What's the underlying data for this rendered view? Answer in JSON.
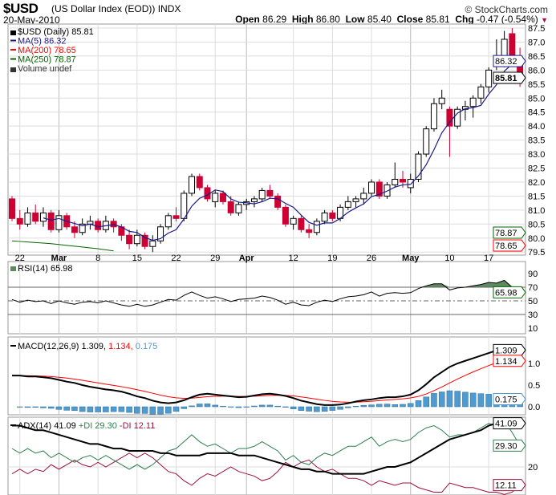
{
  "header": {
    "symbol": "$USD",
    "description": "(US Dollar Index (EOD))",
    "exchange": "INDX",
    "date": "20-May-2010",
    "copyright": "© StockCharts.com",
    "open_label": "Open",
    "open": "86.29",
    "high_label": "High",
    "high": "86.80",
    "low_label": "Low",
    "low": "85.40",
    "close_label": "Close",
    "close": "85.81",
    "chg_label": "Chg",
    "chg": "-0.47 (-0.54%)"
  },
  "legend": {
    "main": "$USD (Daily) 85.81",
    "ma5": "MA(5) 86.32",
    "ma200": "MA(200) 78.65",
    "ma250": "MA(250) 78.87",
    "volume": "Volume undef",
    "rsi": "RSI(14) 65.98",
    "macd_name": "MACD(12,26,9)",
    "macd_val": "1.309,",
    "macd_sig": "1.134,",
    "macd_hist": "0.175",
    "adx_name": "ADX(14) 41.09",
    "pdi": "+DI 29.30",
    "mdi": "-DI 12.11"
  },
  "colors": {
    "up": "#ffffff",
    "down": "#cc0033",
    "ma5": "#1a1a8c",
    "ma200": "#ff0000",
    "ma250": "#006600",
    "rsi_fill": "#5f8a5f",
    "hist": "#4f9bd0",
    "pdi": "#2e7d4f",
    "mdi": "#a0103c"
  },
  "chart_data": {
    "type": "candlestick",
    "title": "$USD (US Dollar Index (EOD)) INDX",
    "x_labels": [
      {
        "i": 1,
        "t": "22"
      },
      {
        "i": 6,
        "t": "Mar"
      },
      {
        "i": 11,
        "t": "8"
      },
      {
        "i": 16,
        "t": "15"
      },
      {
        "i": 21,
        "t": "22"
      },
      {
        "i": 26,
        "t": "29"
      },
      {
        "i": 30,
        "t": "Apr"
      },
      {
        "i": 36,
        "t": "12"
      },
      {
        "i": 41,
        "t": "19"
      },
      {
        "i": 46,
        "t": "26"
      },
      {
        "i": 51,
        "t": "May"
      },
      {
        "i": 56,
        "t": "10"
      },
      {
        "i": 61,
        "t": "17"
      }
    ],
    "price_ticks": [
      "87.5",
      "87.0",
      "86.5",
      "86.0",
      "85.5",
      "85.0",
      "84.5",
      "84.0",
      "83.5",
      "83.0",
      "82.5",
      "82.0",
      "81.5",
      "81.0",
      "80.5",
      "80.0",
      "79.5"
    ],
    "ylim": [
      79.4,
      87.6
    ],
    "ohlc": [
      [
        81.4,
        81.5,
        80.6,
        80.7
      ],
      [
        80.7,
        81.0,
        80.3,
        80.5
      ],
      [
        80.5,
        81.1,
        80.4,
        80.9
      ],
      [
        80.9,
        81.2,
        80.5,
        80.6
      ],
      [
        80.6,
        81.1,
        80.4,
        80.9
      ],
      [
        80.9,
        81.0,
        80.2,
        80.3
      ],
      [
        80.3,
        81.0,
        80.2,
        80.8
      ],
      [
        80.8,
        80.9,
        80.3,
        80.4
      ],
      [
        80.4,
        80.6,
        80.0,
        80.2
      ],
      [
        80.2,
        80.7,
        80.1,
        80.5
      ],
      [
        80.5,
        80.8,
        80.3,
        80.6
      ],
      [
        80.6,
        80.7,
        80.2,
        80.3
      ],
      [
        80.3,
        80.8,
        80.2,
        80.6
      ],
      [
        80.6,
        80.7,
        80.2,
        80.4
      ],
      [
        80.4,
        80.5,
        79.9,
        80.1
      ],
      [
        80.1,
        80.3,
        79.6,
        79.8
      ],
      [
        79.8,
        80.3,
        79.7,
        80.1
      ],
      [
        80.1,
        80.2,
        79.6,
        79.7
      ],
      [
        79.7,
        80.1,
        79.5,
        79.9
      ],
      [
        79.9,
        80.5,
        79.8,
        80.4
      ],
      [
        80.4,
        80.9,
        80.3,
        80.8
      ],
      [
        80.8,
        81.1,
        80.6,
        80.7
      ],
      [
        80.7,
        81.7,
        80.6,
        81.6
      ],
      [
        81.6,
        82.3,
        81.5,
        82.2
      ],
      [
        82.2,
        82.3,
        81.7,
        81.8
      ],
      [
        81.8,
        81.9,
        81.3,
        81.4
      ],
      [
        81.3,
        81.7,
        81.1,
        81.6
      ],
      [
        81.6,
        81.7,
        81.2,
        81.3
      ],
      [
        81.3,
        81.5,
        80.8,
        80.9
      ],
      [
        80.9,
        81.3,
        80.8,
        81.2
      ],
      [
        81.2,
        81.4,
        81.0,
        81.3
      ],
      [
        81.3,
        81.5,
        81.1,
        81.4
      ],
      [
        81.4,
        81.8,
        81.3,
        81.7
      ],
      [
        81.7,
        81.9,
        81.4,
        81.5
      ],
      [
        81.5,
        81.6,
        81.0,
        81.1
      ],
      [
        81.1,
        81.2,
        80.4,
        80.5
      ],
      [
        80.5,
        80.8,
        80.3,
        80.7
      ],
      [
        80.7,
        80.8,
        80.2,
        80.3
      ],
      [
        80.3,
        80.5,
        80.0,
        80.2
      ],
      [
        80.2,
        80.7,
        80.1,
        80.6
      ],
      [
        80.6,
        81.0,
        80.5,
        80.9
      ],
      [
        80.9,
        81.0,
        80.6,
        80.7
      ],
      [
        80.7,
        81.2,
        80.6,
        81.1
      ],
      [
        81.1,
        81.5,
        81.0,
        81.3
      ],
      [
        81.3,
        81.5,
        81.1,
        81.4
      ],
      [
        81.4,
        81.8,
        81.2,
        81.6
      ],
      [
        81.6,
        82.1,
        81.5,
        82.0
      ],
      [
        82.0,
        82.1,
        81.4,
        81.5
      ],
      [
        81.5,
        82.0,
        81.4,
        81.9
      ],
      [
        81.9,
        82.7,
        81.8,
        82.1
      ],
      [
        82.1,
        82.4,
        81.8,
        82.0
      ],
      [
        81.8,
        82.3,
        81.6,
        82.1
      ],
      [
        82.1,
        83.1,
        82.0,
        83.0
      ],
      [
        83.0,
        84.0,
        82.9,
        83.9
      ],
      [
        83.9,
        85.0,
        83.8,
        84.8
      ],
      [
        84.8,
        85.3,
        84.6,
        85.0
      ],
      [
        84.6,
        84.7,
        82.9,
        84.0
      ],
      [
        84.0,
        84.7,
        83.9,
        84.6
      ],
      [
        84.6,
        84.9,
        84.2,
        84.7
      ],
      [
        84.7,
        85.1,
        84.3,
        85.0
      ],
      [
        85.0,
        85.5,
        84.8,
        85.4
      ],
      [
        85.4,
        86.1,
        85.2,
        86.0
      ],
      [
        86.2,
        87.1,
        86.0,
        86.3
      ],
      [
        86.3,
        87.4,
        86.1,
        87.1
      ],
      [
        87.3,
        87.5,
        86.2,
        86.3
      ],
      [
        86.29,
        86.8,
        85.4,
        85.81
      ]
    ],
    "ma250_visible": [
      79.9,
      79.88,
      79.86,
      79.84,
      79.82,
      79.8,
      79.77,
      79.74,
      79.71,
      79.68,
      79.65,
      79.62,
      79.58,
      79.54
    ],
    "value_tags": {
      "ma5": "86.32",
      "close": "85.81",
      "ma250": "78.87",
      "ma200": "78.65"
    },
    "rsi": {
      "ticks": [
        "90",
        "70",
        "50",
        "30",
        "10"
      ],
      "last": "65.98",
      "values": [
        52,
        48,
        51,
        49,
        50,
        46,
        50,
        47,
        45,
        48,
        49,
        47,
        50,
        47,
        44,
        42,
        45,
        42,
        44,
        48,
        52,
        51,
        58,
        63,
        58,
        54,
        56,
        53,
        49,
        52,
        53,
        54,
        57,
        55,
        51,
        45,
        48,
        44,
        43,
        48,
        51,
        49,
        53,
        56,
        57,
        59,
        63,
        57,
        61,
        62,
        61,
        62,
        68,
        72,
        75,
        75,
        66,
        69,
        70,
        72,
        74,
        77,
        76,
        80,
        70,
        65.98
      ]
    },
    "macd": {
      "ticks": [
        "1.0",
        "0.5",
        "0.0"
      ],
      "tags": [
        "1.309",
        "1.134",
        "0.175"
      ],
      "values": [
        0.72,
        0.72,
        0.7,
        0.7,
        0.68,
        0.66,
        0.62,
        0.58,
        0.55,
        0.5,
        0.46,
        0.43,
        0.4,
        0.38,
        0.35,
        0.3,
        0.24,
        0.2,
        0.14,
        0.1,
        0.08,
        0.1,
        0.15,
        0.22,
        0.28,
        0.3,
        0.28,
        0.26,
        0.24,
        0.22,
        0.23,
        0.26,
        0.29,
        0.3,
        0.28,
        0.25,
        0.2,
        0.14,
        0.1,
        0.06,
        0.04,
        0.04,
        0.05,
        0.08,
        0.12,
        0.15,
        0.17,
        0.2,
        0.22,
        0.22,
        0.24,
        0.28,
        0.38,
        0.52,
        0.68,
        0.8,
        0.92,
        1.0,
        1.06,
        1.12,
        1.18,
        1.24,
        1.3,
        1.34,
        1.33,
        1.309
      ]
    },
    "adx": {
      "ticks": [
        "20"
      ],
      "tags": [
        "41.09",
        "29.30",
        "12.11"
      ],
      "adx": [
        38,
        38,
        37,
        36,
        36,
        35,
        34,
        33,
        32,
        31,
        30,
        30,
        29,
        28,
        28,
        27,
        27,
        27,
        27,
        26,
        26,
        25,
        25,
        25,
        25,
        26,
        26,
        26,
        26,
        25,
        25,
        25,
        24,
        23,
        22,
        21,
        20,
        19,
        19,
        18,
        18,
        17,
        17,
        17,
        17,
        17,
        18,
        19,
        20,
        20,
        21,
        22,
        24,
        26,
        28,
        30,
        32,
        33,
        34,
        35,
        36,
        38,
        39,
        40,
        41,
        41.09
      ],
      "pdi": [
        28,
        26,
        28,
        26,
        27,
        24,
        26,
        24,
        22,
        24,
        25,
        23,
        25,
        23,
        21,
        19,
        21,
        19,
        21,
        24,
        27,
        28,
        31,
        34,
        31,
        29,
        30,
        28,
        26,
        28,
        28,
        29,
        31,
        29,
        27,
        23,
        25,
        22,
        21,
        24,
        26,
        25,
        27,
        29,
        29,
        31,
        33,
        29,
        31,
        32,
        31,
        32,
        35,
        37,
        38,
        36,
        33,
        34,
        34,
        35,
        37,
        39,
        38,
        40,
        35,
        29.3
      ],
      "mdi": [
        17,
        19,
        17,
        19,
        18,
        21,
        19,
        21,
        23,
        21,
        20,
        22,
        20,
        22,
        24,
        26,
        24,
        26,
        24,
        21,
        18,
        17,
        14,
        12,
        15,
        17,
        16,
        18,
        20,
        18,
        17,
        16,
        14,
        15,
        18,
        22,
        20,
        22,
        23,
        20,
        18,
        19,
        17,
        15,
        15,
        14,
        12,
        14,
        13,
        12,
        13,
        13,
        11,
        10,
        9,
        9,
        13,
        12,
        11,
        11,
        10,
        9,
        9,
        8,
        9,
        12.11
      ]
    }
  }
}
